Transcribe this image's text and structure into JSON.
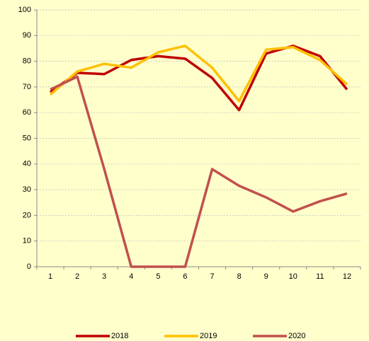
{
  "chart_data": {
    "type": "line",
    "categories": [
      "1",
      "2",
      "3",
      "4",
      "5",
      "6",
      "7",
      "8",
      "9",
      "10",
      "11",
      "12"
    ],
    "series": [
      {
        "name": "2018",
        "color": "#c00000",
        "values": [
          68,
          75.5,
          75,
          80.5,
          82,
          81,
          73.5,
          61,
          83,
          86,
          82,
          69
        ]
      },
      {
        "name": "2019",
        "color": "#ffc000",
        "values": [
          67,
          76,
          79,
          77.5,
          83.5,
          86,
          77.5,
          64.5,
          84.5,
          85.5,
          80.5,
          71
        ]
      },
      {
        "name": "2020",
        "color": "#c0504d",
        "values": [
          69,
          74,
          38,
          0,
          0,
          0,
          38,
          31.5,
          27,
          21.5,
          25.5,
          28.5
        ]
      }
    ],
    "ylim": [
      0,
      100
    ],
    "yticks": [
      0,
      10,
      20,
      30,
      40,
      50,
      60,
      70,
      80,
      90,
      100
    ],
    "grid": true,
    "legend": "bottom"
  }
}
